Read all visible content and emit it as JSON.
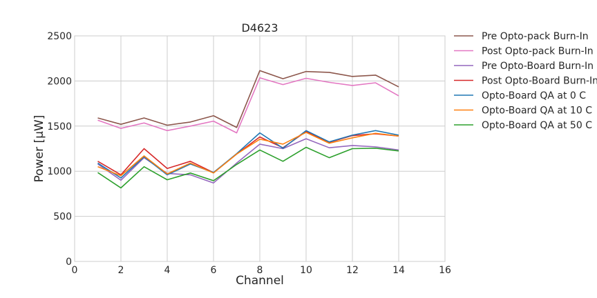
{
  "chart_data": {
    "type": "line",
    "title": "D4623",
    "xlabel": "Channel",
    "ylabel": "Power [μW]",
    "xlim": [
      0,
      16
    ],
    "ylim": [
      0,
      2500
    ],
    "xticks": [
      0,
      2,
      4,
      6,
      8,
      10,
      12,
      14,
      16
    ],
    "yticks": [
      0,
      500,
      1000,
      1500,
      2000,
      2500
    ],
    "grid": true,
    "legend_placement": "outside-right",
    "x": [
      1,
      2,
      3,
      4,
      5,
      6,
      7,
      8,
      9,
      10,
      11,
      12,
      13,
      14
    ],
    "series": [
      {
        "name": "Pre Opto-pack Burn-In",
        "color": "#8c564b",
        "values": [
          1590,
          1520,
          1590,
          1510,
          1545,
          1615,
          1485,
          2115,
          2025,
          2105,
          2095,
          2050,
          2065,
          1935
        ]
      },
      {
        "name": "Post Opto-pack Burn-In",
        "color": "#e377c2",
        "values": [
          1565,
          1475,
          1535,
          1450,
          1500,
          1555,
          1425,
          2035,
          1960,
          2030,
          1985,
          1950,
          1980,
          1835
        ]
      },
      {
        "name": "Pre Opto-Board Burn-In",
        "color": "#9467bd",
        "values": [
          1080,
          900,
          1150,
          975,
          960,
          870,
          1090,
          1300,
          1250,
          1360,
          1260,
          1285,
          1270,
          1235
        ]
      },
      {
        "name": "Post Opto-Board Burn-In",
        "color": "#d62728",
        "values": [
          1110,
          960,
          1250,
          1030,
          1110,
          985,
          1190,
          1380,
          1260,
          1440,
          1320,
          1395,
          1415,
          1390
        ]
      },
      {
        "name": "Opto-Board QA at 0 C",
        "color": "#1f77b4",
        "values": [
          1090,
          925,
          1160,
          960,
          1080,
          985,
          1195,
          1425,
          1255,
          1450,
          1325,
          1400,
          1450,
          1400
        ]
      },
      {
        "name": "Opto-Board QA at 10 C",
        "color": "#ff7f0e",
        "values": [
          1050,
          950,
          1170,
          970,
          1090,
          980,
          1190,
          1355,
          1300,
          1430,
          1310,
          1370,
          1420,
          1390
        ]
      },
      {
        "name": "Opto-Board QA at 50 C",
        "color": "#2ca02c",
        "values": [
          985,
          815,
          1050,
          905,
          980,
          895,
          1075,
          1235,
          1110,
          1265,
          1150,
          1250,
          1255,
          1225
        ]
      }
    ]
  }
}
